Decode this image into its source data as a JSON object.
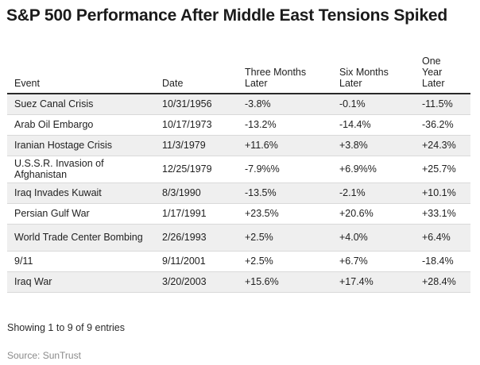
{
  "title": "S&P 500 Performance After Middle East Tensions Spiked",
  "table": {
    "headers": [
      "Event",
      "Date",
      "Three Months Later",
      "Six Months Later",
      "One Year Later"
    ],
    "rows": [
      {
        "event": "Suez Canal Crisis",
        "date": "10/31/1956",
        "three": "-3.8%",
        "six": "-0.1%",
        "year": "-11.5%"
      },
      {
        "event": "Arab Oil Embargo",
        "date": "10/17/1973",
        "three": "-13.2%",
        "six": "-14.4%",
        "year": "-36.2%"
      },
      {
        "event": "Iranian Hostage Crisis",
        "date": "11/3/1979",
        "three": "+11.6%",
        "six": "+3.8%",
        "year": "+24.3%"
      },
      {
        "event": "U.S.S.R. Invasion of Afghanistan",
        "date": "12/25/1979",
        "three": "-7.9%%",
        "six": "+6.9%%",
        "year": "+25.7%"
      },
      {
        "event": "Iraq Invades Kuwait",
        "date": "8/3/1990",
        "three": "-13.5%",
        "six": "-2.1%",
        "year": "+10.1%"
      },
      {
        "event": "Persian Gulf War",
        "date": "1/17/1991",
        "three": "+23.5%",
        "six": "+20.6%",
        "year": "+33.1%"
      },
      {
        "event": "World Trade Center Bombing",
        "date": "2/26/1993",
        "three": "+2.5%",
        "six": "+4.0%",
        "year": "+6.4%"
      },
      {
        "event": "9/11",
        "date": "9/11/2001",
        "three": "+2.5%",
        "six": "+6.7%",
        "year": "-18.4%"
      },
      {
        "event": "Iraq War",
        "date": "3/20/2003",
        "three": "+15.6%",
        "six": "+17.4%",
        "year": "+28.4%"
      }
    ]
  },
  "entries_text": "Showing 1 to 9 of 9 entries",
  "source_text": "Source: SunTrust"
}
